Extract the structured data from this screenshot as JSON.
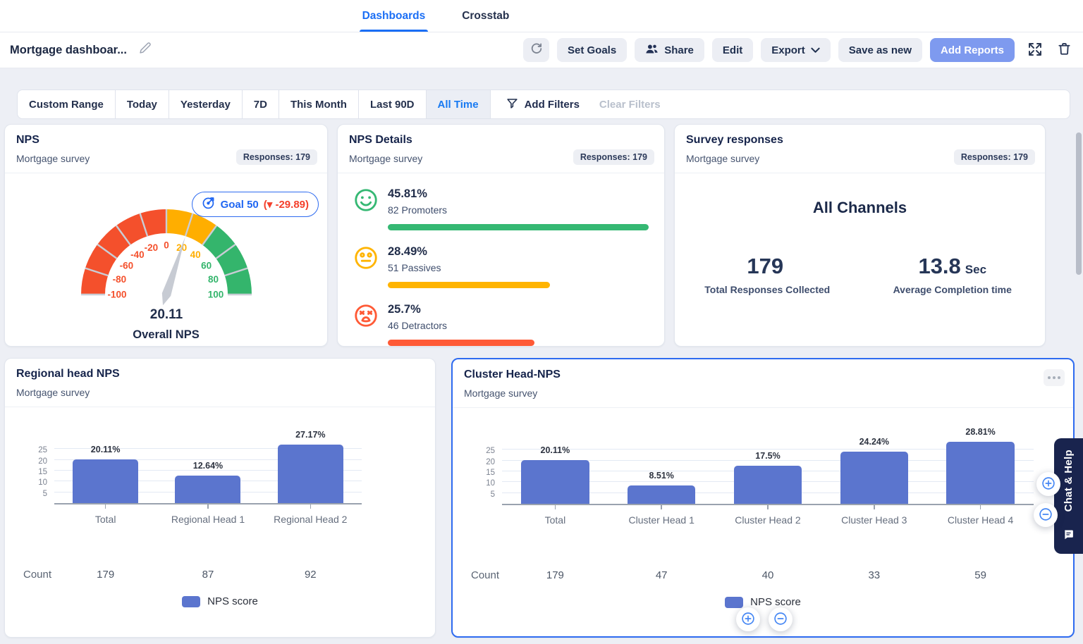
{
  "nav": {
    "tabs": [
      {
        "label": "Dashboards",
        "active": true
      },
      {
        "label": "Crosstab",
        "active": false
      }
    ]
  },
  "toolbar": {
    "title": "Mortgage dashboar...",
    "set_goals": "Set Goals",
    "share": "Share",
    "edit": "Edit",
    "export": "Export",
    "save_as_new": "Save as new",
    "add_reports": "Add Reports"
  },
  "filters": {
    "ranges": [
      "Custom Range",
      "Today",
      "Yesterday",
      "7D",
      "This Month",
      "Last 90D",
      "All Time"
    ],
    "active_range": "All Time",
    "add_filters": "Add Filters",
    "clear_filters": "Clear Filters"
  },
  "cards": {
    "nps": {
      "title": "NPS",
      "subtitle": "Mortgage survey",
      "responses": "Responses: 179",
      "goal_label": "Goal 50",
      "goal_delta": "(▾ -29.89)",
      "gauge_caption": "Overall NPS"
    },
    "nps_details": {
      "title": "NPS Details",
      "subtitle": "Mortgage survey",
      "responses": "Responses: 179"
    },
    "survey_responses": {
      "title": "Survey responses",
      "subtitle": "Mortgage survey",
      "responses": "Responses: 179",
      "channel": "All Channels",
      "stats": [
        {
          "value": "179",
          "unit": "",
          "label": "Total Responses Collected"
        },
        {
          "value": "13.8",
          "unit": "Sec",
          "label": "Average Completion time"
        }
      ]
    },
    "regional": {
      "title": "Regional head NPS",
      "subtitle": "Mortgage survey"
    },
    "cluster": {
      "title": "Cluster Head-NPS",
      "subtitle": "Mortgage survey"
    }
  },
  "chart_data": [
    {
      "id": "overall-nps-gauge",
      "type": "gauge",
      "min": -100,
      "max": 100,
      "value": 20.11,
      "value_label": "20.11",
      "caption": "Overall NPS",
      "tick_step": 20,
      "segments": [
        {
          "from": -100,
          "to": 0,
          "color": "#F4502C"
        },
        {
          "from": 0,
          "to": 40,
          "color": "#FFAE00"
        },
        {
          "from": 40,
          "to": 100,
          "color": "#34B56C"
        }
      ],
      "goal": 50,
      "goal_delta": -29.89
    },
    {
      "id": "nps-breakdown",
      "type": "bar",
      "orientation": "horizontal",
      "rows": [
        {
          "pct": "45.81%",
          "value": 45.81,
          "count_label": "82 Promoters",
          "color": "#35B873",
          "icon": "happy-face"
        },
        {
          "pct": "28.49%",
          "value": 28.49,
          "count_label": "51 Passives",
          "color": "#FFB400",
          "icon": "neutral-face"
        },
        {
          "pct": "25.7%",
          "value": 25.7,
          "count_label": "46 Detractors",
          "color": "#FF5A36",
          "icon": "sad-face"
        }
      ]
    },
    {
      "id": "regional-head-nps",
      "type": "bar",
      "title": "Regional head NPS",
      "categories": [
        "Total",
        "Regional Head 1",
        "Regional Head 2"
      ],
      "values": [
        20.11,
        12.64,
        27.17
      ],
      "value_labels": [
        "20.11%",
        "12.64%",
        "27.17%"
      ],
      "counts": [
        "179",
        "87",
        "92"
      ],
      "count_label": "Count",
      "ylim": [
        0,
        30
      ],
      "yticks": [
        5,
        10,
        15,
        20,
        25
      ],
      "bar_color": "#5B75CE",
      "legend": [
        "NPS score"
      ],
      "legend_position": "bottom"
    },
    {
      "id": "cluster-head-nps",
      "type": "bar",
      "title": "Cluster Head-NPS",
      "categories": [
        "Total",
        "Cluster Head 1",
        "Cluster Head 2",
        "Cluster Head 3",
        "Cluster Head 4"
      ],
      "values": [
        20.11,
        8.51,
        17.5,
        24.24,
        28.81
      ],
      "value_labels": [
        "20.11%",
        "8.51%",
        "17.5%",
        "24.24%",
        "28.81%"
      ],
      "counts": [
        "179",
        "47",
        "40",
        "33",
        "59"
      ],
      "count_label": "Count",
      "ylim": [
        0,
        30
      ],
      "yticks": [
        5,
        10,
        15,
        20,
        25
      ],
      "bar_color": "#5B75CE",
      "legend": [
        "NPS score"
      ],
      "legend_position": "bottom"
    }
  ],
  "chat_help": {
    "label": "Chat & Help"
  }
}
